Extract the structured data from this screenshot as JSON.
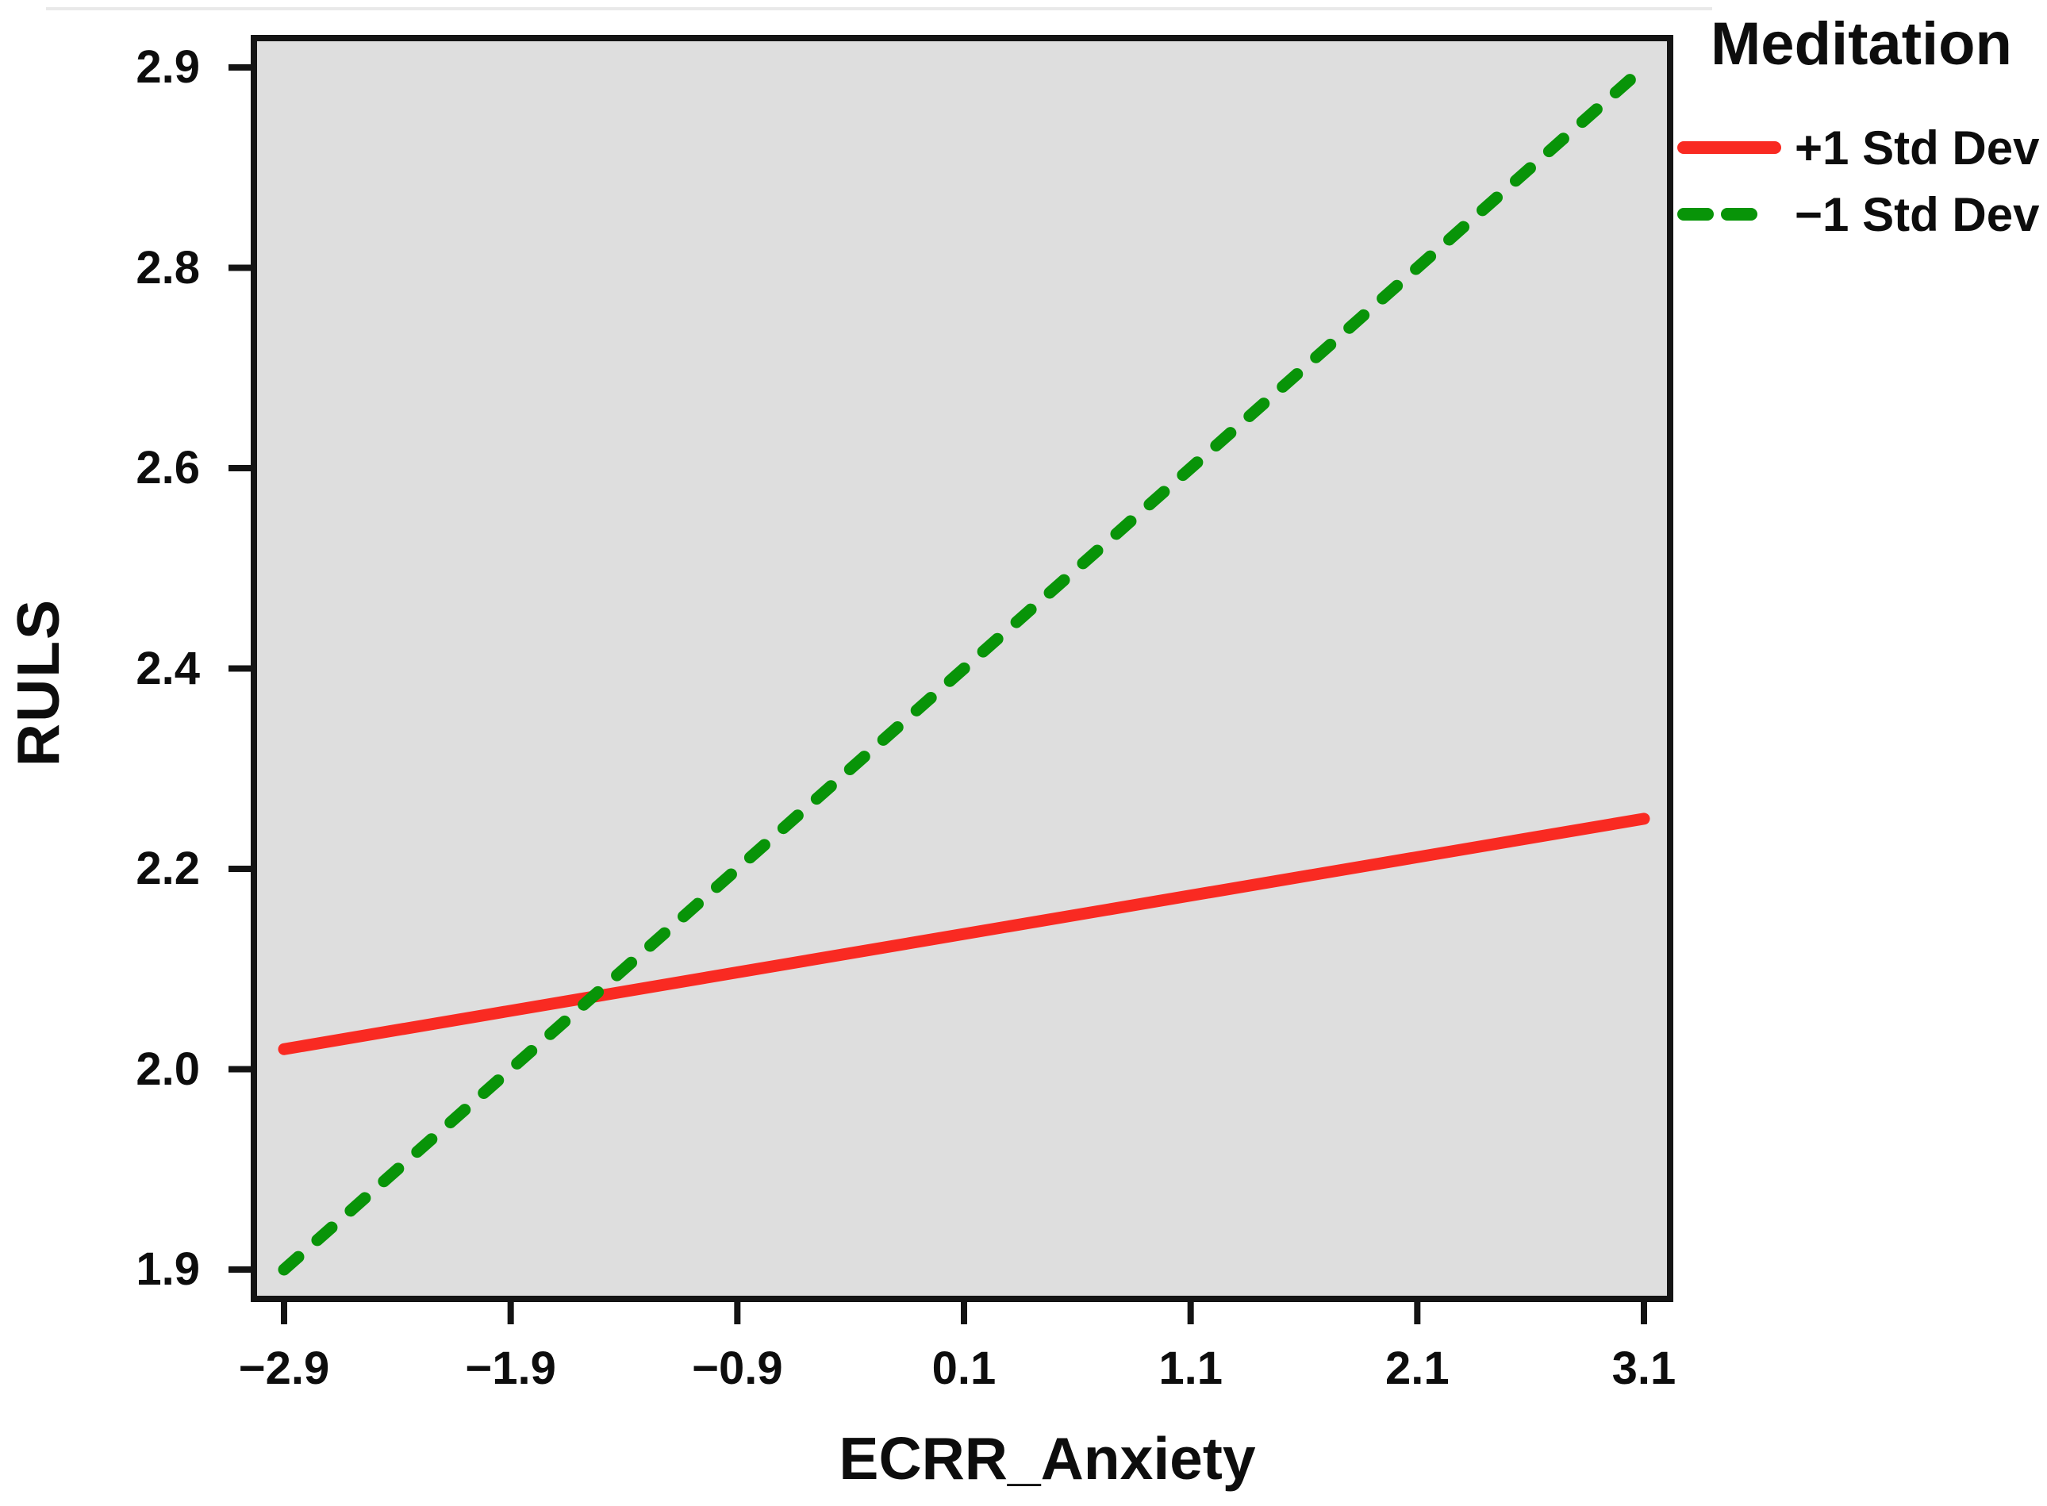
{
  "page": {
    "background_color": "#ffffff"
  },
  "chart_data": {
    "type": "line",
    "title": "",
    "xlabel": "ECRR_Anxiety",
    "ylabel": "RULS",
    "plot_background": "#dedede",
    "axis_color": "#141414",
    "text_color": "#0d0d0d",
    "grid": false,
    "x_range": [
      -2.9,
      3.1
    ],
    "x_ticks": {
      "values": [
        -2.9,
        -1.9,
        -0.9,
        0.1,
        1.1,
        2.1,
        3.1
      ],
      "labels": [
        "−2.9",
        "−1.9",
        "−0.9",
        "0.1",
        "1.1",
        "2.1",
        "3.1"
      ]
    },
    "y_ticks": {
      "values": [
        2.9,
        2.8,
        2.6,
        2.4,
        2.2,
        2.0,
        1.9
      ],
      "labels": [
        "2.9",
        "2.8",
        "2.6",
        "2.4",
        "2.2",
        "2.0",
        "1.9"
      ],
      "spacing": "even-positional"
    },
    "legend": {
      "title": "Meditation",
      "position": "top-right"
    },
    "series": [
      {
        "name": "+1 Std Dev",
        "color": "#f92a22",
        "line_style": "solid",
        "x": [
          -2.9,
          3.1
        ],
        "y": [
          2.02,
          2.25
        ]
      },
      {
        "name": "−1 Std Dev",
        "color": "#089408",
        "line_style": "dashed",
        "x": [
          -2.9,
          3.1
        ],
        "y": [
          1.9,
          2.9
        ]
      }
    ]
  }
}
